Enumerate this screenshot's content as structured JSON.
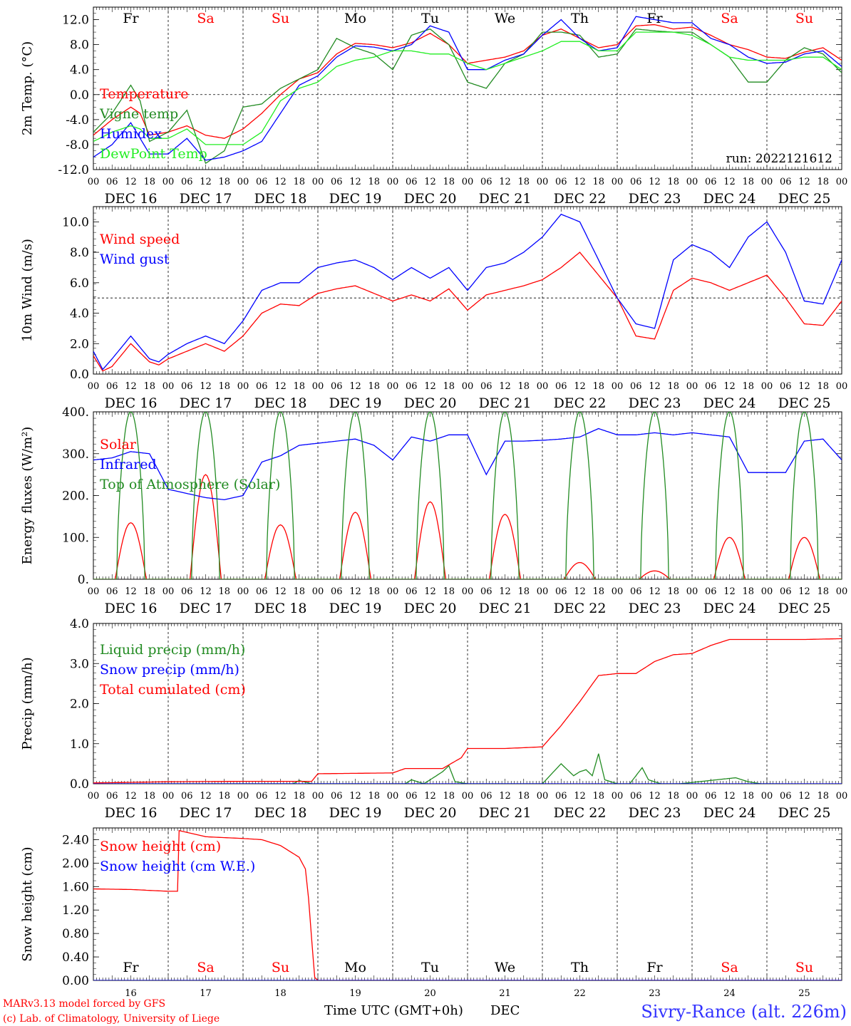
{
  "run_label": "run: 2022121612",
  "footer": {
    "model": "MARv3.13 model forced by GFS",
    "lab": "(c) Lab. of Climatology, University of Liege",
    "xlabel": "Time UTC (GMT+0h)",
    "month": "DEC",
    "station": "Sivry-Rance (alt. 226m)"
  },
  "weekdays": [
    {
      "label": "Fr",
      "color": "#000000"
    },
    {
      "label": "Sa",
      "color": "#ff0000"
    },
    {
      "label": "Su",
      "color": "#ff0000"
    },
    {
      "label": "Mo",
      "color": "#000000"
    },
    {
      "label": "Tu",
      "color": "#000000"
    },
    {
      "label": "We",
      "color": "#000000"
    },
    {
      "label": "Th",
      "color": "#000000"
    },
    {
      "label": "Fr",
      "color": "#000000"
    },
    {
      "label": "Sa",
      "color": "#ff0000"
    },
    {
      "label": "Su",
      "color": "#ff0000"
    }
  ],
  "date_labels": [
    "DEC 16",
    "DEC 17",
    "DEC 18",
    "DEC 19",
    "DEC 20",
    "DEC 21",
    "DEC 22",
    "DEC 23",
    "DEC 24",
    "DEC 25"
  ],
  "day_numbers": [
    "16",
    "17",
    "18",
    "19",
    "20",
    "21",
    "22",
    "23",
    "24",
    "25"
  ],
  "hour_ticks": [
    "00",
    "06",
    "12",
    "18"
  ],
  "colors": {
    "red": "#ff0000",
    "darkgreen": "#228b22",
    "blue": "#0000ff",
    "lightgreen": "#22ee22"
  },
  "chart_data": [
    {
      "type": "line",
      "ylabel": "2m Temp. (°C)",
      "ylim": [
        -12,
        14
      ],
      "yticks": [
        "12.0",
        "8.0",
        "4.0",
        "0.0",
        "-4.0",
        "-8.0",
        "-12.0"
      ],
      "ytick_values": [
        12,
        8,
        4,
        0,
        -4,
        -8,
        -12
      ],
      "x_unit": "hours from 2022-12-16 00 UTC",
      "hline": 0,
      "series": [
        {
          "name": "Temperature",
          "color": "#ff0000",
          "x": [
            0,
            6,
            12,
            15,
            18,
            24,
            30,
            36,
            42,
            48,
            54,
            60,
            66,
            72,
            78,
            84,
            90,
            96,
            102,
            108,
            114,
            120,
            126,
            132,
            138,
            144,
            150,
            156,
            162,
            168,
            174,
            180,
            186,
            192,
            198,
            204,
            210,
            216,
            222,
            228,
            234,
            240
          ],
          "values": [
            -6.5,
            -4,
            -2,
            -3,
            -6.5,
            -6,
            -5,
            -6.5,
            -7,
            -5.5,
            -3,
            0,
            2.5,
            3.5,
            6.5,
            8.2,
            8,
            7.5,
            8.3,
            9.8,
            8,
            5,
            5.5,
            6,
            7,
            9.5,
            10.5,
            9,
            7.5,
            8,
            11,
            11.2,
            10.5,
            10.8,
            9.5,
            8,
            7.2,
            6,
            5.8,
            6.8,
            7.5,
            5.5
          ]
        },
        {
          "name": "Vigne temp",
          "color": "#228b22",
          "x": [
            0,
            6,
            12,
            15,
            18,
            24,
            30,
            36,
            42,
            48,
            54,
            60,
            66,
            72,
            78,
            84,
            90,
            96,
            102,
            108,
            114,
            120,
            126,
            132,
            138,
            144,
            150,
            156,
            162,
            168,
            174,
            180,
            186,
            192,
            198,
            204,
            210,
            216,
            222,
            228,
            234,
            240
          ],
          "values": [
            -6,
            -3,
            1.5,
            -1,
            -7.5,
            -6,
            -2.5,
            -11,
            -9,
            -2,
            -1.5,
            1,
            2.5,
            4,
            9,
            7.5,
            6.5,
            4,
            9.5,
            10.5,
            8,
            2,
            1,
            5,
            6.5,
            10,
            10,
            9.5,
            6,
            6.5,
            10.5,
            10.2,
            10,
            10,
            8,
            6,
            2,
            2,
            5.5,
            7.5,
            6.5,
            3.5
          ]
        },
        {
          "name": "Humidex",
          "color": "#0000ff",
          "x": [
            0,
            6,
            12,
            15,
            18,
            24,
            30,
            36,
            42,
            48,
            54,
            60,
            66,
            72,
            78,
            84,
            90,
            96,
            102,
            108,
            114,
            120,
            126,
            132,
            138,
            144,
            150,
            156,
            162,
            168,
            174,
            180,
            186,
            192,
            198,
            204,
            210,
            216,
            222,
            228,
            234,
            240
          ],
          "values": [
            -10,
            -8,
            -4.5,
            -7,
            -9.5,
            -9.5,
            -7,
            -10.5,
            -10,
            -9,
            -7.5,
            -3,
            1.5,
            3,
            6,
            7.8,
            7.6,
            7,
            8,
            11,
            10,
            4,
            4,
            5.5,
            6.5,
            9.5,
            12,
            9,
            7,
            7.5,
            12.5,
            12,
            11.5,
            11.5,
            9,
            8,
            6,
            5,
            5.2,
            6.5,
            7,
            4.5
          ]
        },
        {
          "name": "DewPoint Temp",
          "color": "#22ee22",
          "x": [
            0,
            6,
            12,
            15,
            18,
            24,
            30,
            36,
            42,
            48,
            54,
            60,
            66,
            72,
            78,
            84,
            90,
            96,
            102,
            108,
            114,
            120,
            126,
            132,
            138,
            144,
            150,
            156,
            162,
            168,
            174,
            180,
            186,
            192,
            198,
            204,
            210,
            216,
            222,
            228,
            234,
            240
          ],
          "values": [
            -7.5,
            -6,
            -5,
            -5.5,
            -7,
            -7,
            -5.5,
            -8,
            -8,
            -8,
            -6,
            -1,
            1,
            2,
            4.5,
            5.5,
            6,
            7,
            7,
            6.5,
            6.5,
            5,
            4,
            5,
            6,
            7,
            8.5,
            8.5,
            7,
            7,
            10,
            10,
            10,
            9.5,
            8,
            6,
            5.5,
            5.5,
            5.5,
            6,
            6,
            4
          ]
        }
      ],
      "legend": [
        "Temperature",
        "Vigne temp",
        "Humidex",
        "DewPoint Temp"
      ]
    },
    {
      "type": "line",
      "ylabel": "10m Wind (m/s)",
      "ylim": [
        0,
        11
      ],
      "yticks": [
        "10.0",
        "8.0",
        "6.0",
        "4.0",
        "2.0",
        "0.0"
      ],
      "ytick_values": [
        10,
        8,
        6,
        4,
        2,
        0
      ],
      "hline": 5,
      "series": [
        {
          "name": "Wind speed",
          "color": "#ff0000",
          "x": [
            0,
            3,
            6,
            12,
            18,
            21,
            24,
            30,
            36,
            42,
            48,
            54,
            60,
            66,
            72,
            78,
            84,
            90,
            96,
            102,
            108,
            114,
            120,
            126,
            132,
            138,
            144,
            150,
            156,
            162,
            168,
            174,
            180,
            186,
            192,
            198,
            204,
            210,
            216,
            222,
            228,
            234,
            240
          ],
          "values": [
            1.2,
            0.2,
            0.5,
            2,
            0.8,
            0.6,
            1,
            1.5,
            2,
            1.5,
            2.5,
            4,
            4.6,
            4.5,
            5.3,
            5.6,
            5.8,
            5.3,
            4.8,
            5.2,
            4.8,
            5.6,
            4.2,
            5.2,
            5.5,
            5.8,
            6.2,
            7,
            8,
            6.5,
            5,
            2.5,
            2.3,
            5.5,
            6.3,
            6,
            5.5,
            6,
            6.5,
            5,
            3.3,
            3.2,
            4.8
          ]
        },
        {
          "name": "Wind gust",
          "color": "#0000ff",
          "x": [
            0,
            3,
            6,
            12,
            18,
            21,
            24,
            30,
            36,
            42,
            48,
            54,
            60,
            66,
            72,
            78,
            84,
            90,
            96,
            102,
            108,
            114,
            120,
            126,
            132,
            138,
            144,
            150,
            156,
            162,
            168,
            174,
            180,
            186,
            192,
            198,
            204,
            210,
            216,
            222,
            228,
            234,
            240
          ],
          "values": [
            1.5,
            0.3,
            1,
            2.5,
            1,
            0.8,
            1.3,
            2,
            2.5,
            2,
            3.5,
            5.5,
            6,
            6,
            7,
            7.3,
            7.5,
            7,
            6.2,
            7,
            6.3,
            7,
            5.5,
            7,
            7.3,
            8,
            9,
            10.5,
            10,
            7.5,
            5,
            3.3,
            3,
            7.5,
            8.5,
            8,
            7,
            9,
            10,
            8,
            4.8,
            4.6,
            7.5
          ]
        }
      ],
      "legend": [
        "Wind speed",
        "Wind gust"
      ]
    },
    {
      "type": "line",
      "ylabel": "Energy fluxes (W/m²)",
      "ylim": [
        0,
        400
      ],
      "yticks": [
        "400.",
        "300.",
        "200.",
        "100.",
        "0."
      ],
      "ytick_values": [
        400,
        300,
        200,
        100,
        0
      ],
      "series": [
        {
          "name": "Solar",
          "color": "#ff0000",
          "peaks": [
            135,
            250,
            130,
            160,
            185,
            155,
            40,
            20,
            100,
            100
          ]
        },
        {
          "name": "Infrared",
          "color": "#0000ff",
          "x": [
            0,
            6,
            12,
            18,
            24,
            30,
            36,
            42,
            48,
            54,
            60,
            66,
            72,
            78,
            84,
            90,
            96,
            102,
            108,
            114,
            120,
            126,
            132,
            138,
            144,
            150,
            156,
            162,
            168,
            174,
            180,
            186,
            192,
            198,
            204,
            210,
            216,
            222,
            228,
            234,
            240
          ],
          "values": [
            285,
            290,
            305,
            300,
            215,
            205,
            195,
            190,
            200,
            280,
            295,
            320,
            325,
            330,
            335,
            320,
            285,
            340,
            330,
            345,
            345,
            250,
            330,
            330,
            332,
            335,
            340,
            360,
            345,
            345,
            350,
            345,
            350,
            345,
            340,
            255,
            255,
            255,
            330,
            335,
            285
          ]
        },
        {
          "name": "Top of Atmosphere (Solar)",
          "color": "#228b22",
          "peak": 400
        }
      ],
      "legend": [
        "Solar",
        "Infrared",
        "Top of Atmosphere (Solar)"
      ]
    },
    {
      "type": "line",
      "ylabel": "Precip (mm/h)",
      "ylim": [
        0,
        4
      ],
      "yticks": [
        "4.0",
        "3.0",
        "2.0",
        "1.0",
        "0.0"
      ],
      "ytick_values": [
        4,
        3,
        2,
        1,
        0
      ],
      "series": [
        {
          "name": "Liquid precip (mm/h)",
          "color": "#228b22",
          "x": [
            0,
            60,
            64,
            66,
            70,
            100,
            102,
            106,
            112,
            114,
            116,
            120,
            122,
            144,
            150,
            154,
            156,
            158,
            160,
            162,
            164,
            168,
            172,
            176,
            178,
            182,
            188,
            200,
            206,
            210,
            214,
            220
          ],
          "values": [
            0,
            0,
            0,
            0.08,
            0,
            0,
            0.1,
            0,
            0.3,
            0.45,
            0.05,
            0,
            0,
            0,
            0.5,
            0.2,
            0.3,
            0.35,
            0.2,
            0.75,
            0.1,
            0,
            0,
            0.4,
            0.1,
            0,
            0,
            0.1,
            0.15,
            0.05,
            0,
            0
          ]
        },
        {
          "name": "Snow precip (mm/h)",
          "color": "#0000ff",
          "x": [
            0,
            240
          ],
          "values": [
            0,
            0
          ]
        },
        {
          "name": "Total cumulated (cm)",
          "color": "#ff0000",
          "x": [
            0,
            24,
            48,
            70,
            72,
            96,
            100,
            112,
            118,
            120,
            132,
            144,
            150,
            156,
            162,
            168,
            174,
            180,
            186,
            192,
            198,
            204,
            210,
            216,
            228,
            240
          ],
          "values": [
            0.02,
            0.05,
            0.06,
            0.06,
            0.25,
            0.27,
            0.38,
            0.38,
            0.65,
            0.88,
            0.88,
            0.92,
            1.45,
            2.05,
            2.7,
            2.75,
            2.75,
            3.05,
            3.22,
            3.25,
            3.45,
            3.6,
            3.6,
            3.6,
            3.6,
            3.62
          ]
        }
      ],
      "legend": [
        "Liquid precip (mm/h)",
        "Snow precip (mm/h)",
        "Total cumulated (cm)"
      ]
    },
    {
      "type": "line",
      "ylabel": "Snow height (cm)",
      "ylim": [
        0,
        2.6
      ],
      "yticks": [
        "2.40",
        "2.00",
        "1.60",
        "1.20",
        "0.80",
        "0.40",
        "0.00"
      ],
      "ytick_values": [
        2.4,
        2.0,
        1.6,
        1.2,
        0.8,
        0.4,
        0.0
      ],
      "series": [
        {
          "name": "Snow height (cm)",
          "color": "#ff0000",
          "x": [
            0,
            12,
            24,
            27,
            27.1,
            36,
            48,
            54,
            60,
            66,
            68,
            69,
            70,
            71,
            72,
            240
          ],
          "values": [
            1.56,
            1.55,
            1.52,
            1.52,
            2.56,
            2.45,
            2.42,
            2.4,
            2.3,
            2.1,
            1.9,
            1.4,
            0.7,
            0.05,
            0,
            0
          ]
        },
        {
          "name": "Snow height (cm W.E.)",
          "color": "#0000ff",
          "x": [
            0,
            240
          ],
          "values": [
            0,
            0
          ]
        }
      ],
      "legend": [
        "Snow height (cm)",
        "Snow height (cm W.E.)"
      ]
    }
  ]
}
